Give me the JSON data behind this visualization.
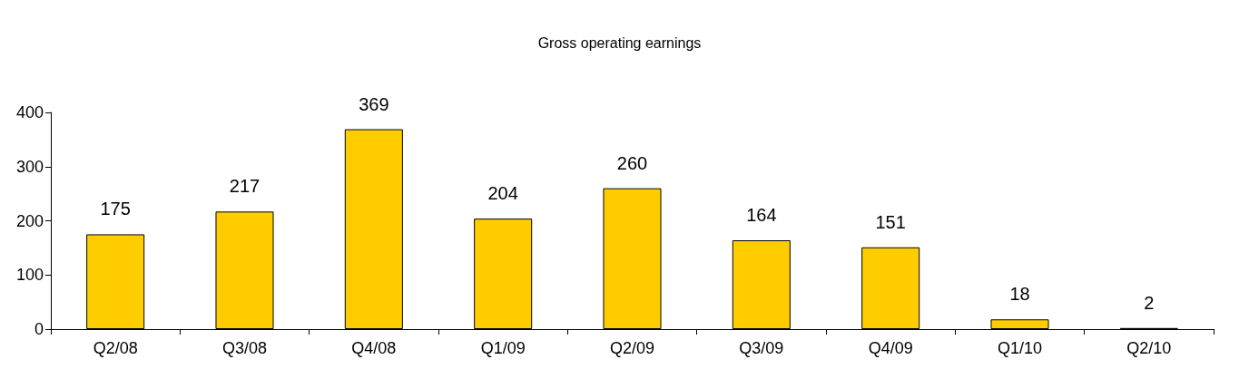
{
  "chart_data": {
    "type": "bar",
    "title": "Gross operating earnings",
    "categories": [
      "Q2/08",
      "Q3/08",
      "Q4/08",
      "Q1/09",
      "Q2/09",
      "Q3/09",
      "Q4/09",
      "Q1/10",
      "Q2/10"
    ],
    "values": [
      175,
      217,
      369,
      204,
      260,
      164,
      151,
      18,
      2
    ],
    "color": "#ffcc00",
    "ylim": [
      0,
      400
    ],
    "yticks": [
      0,
      100,
      200,
      300,
      400
    ],
    "data_labels": true
  }
}
